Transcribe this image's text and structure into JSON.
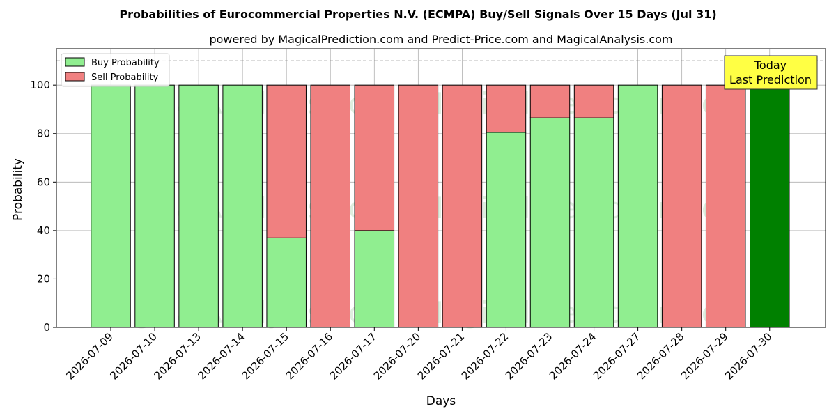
{
  "chart_data": {
    "type": "bar",
    "stacked": true,
    "title": "Probabilities of Eurocommercial Properties N.V. (ECMPA) Buy/Sell Signals Over 15 Days (Jul 31)",
    "subtitle": "powered by MagicalPrediction.com and Predict-Price.com and MagicalAnalysis.com",
    "xlabel": "Days",
    "ylabel": "Probability",
    "ylim": [
      0,
      115
    ],
    "yticks": [
      0,
      20,
      40,
      60,
      80,
      100
    ],
    "grid": true,
    "legend_placement": "top-left",
    "reference_line": 110,
    "categories": [
      "2026-07-09",
      "2026-07-10",
      "2026-07-13",
      "2026-07-14",
      "2026-07-15",
      "2026-07-16",
      "2026-07-17",
      "2026-07-20",
      "2026-07-21",
      "2026-07-22",
      "2026-07-23",
      "2026-07-24",
      "2026-07-27",
      "2026-07-28",
      "2026-07-29",
      "2026-07-30"
    ],
    "series": [
      {
        "name": "Buy Probability",
        "color": "#90ee90",
        "values": [
          100,
          100,
          100,
          100,
          37,
          0,
          40,
          0,
          0,
          80.5,
          86.5,
          86.5,
          100,
          0,
          0,
          100
        ]
      },
      {
        "name": "Sell Probability",
        "color": "#f08080",
        "values": [
          0,
          0,
          0,
          0,
          63,
          100,
          60,
          100,
          100,
          19.5,
          13.5,
          13.5,
          0,
          100,
          100,
          0
        ]
      }
    ],
    "highlight": {
      "index": 15,
      "color": "#008000"
    },
    "annotation": {
      "lines": [
        "Today",
        "Last Prediction"
      ],
      "color": "#ffff44"
    },
    "watermarks": [
      "MagicalAnalysis.com",
      "MagicalPrediction.com"
    ]
  }
}
